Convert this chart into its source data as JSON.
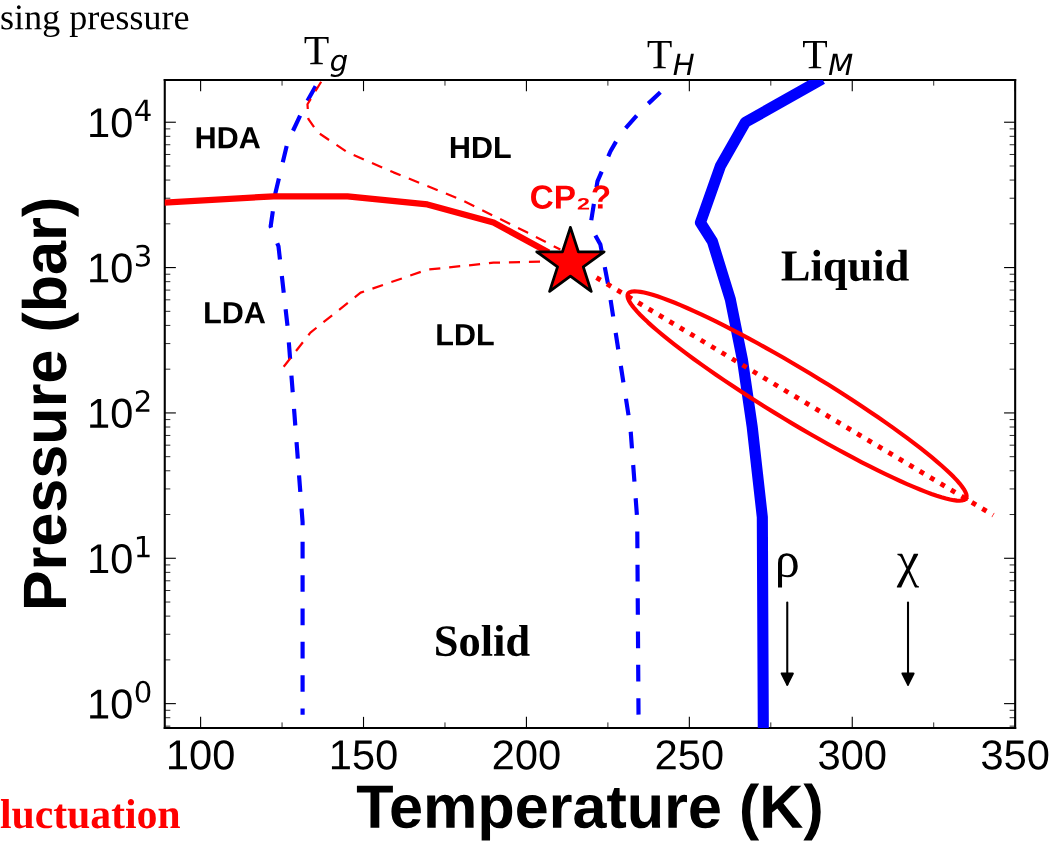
{
  "chart_data": {
    "type": "line",
    "xlabel": "Temperature (K)",
    "ylabel": "Pressure (bar)",
    "log": "y",
    "grid": false,
    "xlim": [
      89,
      350
    ],
    "xticks": [
      100,
      150,
      200,
      250,
      300,
      350
    ],
    "ylim": [
      0.68,
      19500
    ],
    "yticks": [
      {
        "value": 1,
        "label": "10$^{0}$"
      },
      {
        "value": 10,
        "label": "10$^{1}$"
      },
      {
        "value": 100,
        "label": "10$^{2}$"
      },
      {
        "value": 1000,
        "label": "10$^{3}$"
      },
      {
        "value": 10000,
        "label": "10$^{4}$"
      }
    ],
    "series": [
      {
        "name": "T$_{g}$",
        "color": "#0000ff",
        "line_style": "dashed",
        "x": [
          135.3,
          132.2,
          126.7,
          123.0,
          121.5,
          123.9,
          126.7,
          128.8,
          131.3,
          131.3
        ],
        "values": [
          17700,
          13300,
          7280,
          3290,
          1920,
          1400,
          392,
          98,
          17.7,
          0.84
        ]
      },
      {
        "name": "T$_{H}$",
        "color": "#0000ff",
        "line_style": "dashed",
        "x": [
          241.1,
          235.6,
          228.8,
          225.8,
          221.8,
          219.6,
          222.7,
          225.2,
          228.2,
          231.9,
          234.0,
          234.4
        ],
        "values": [
          16100,
          12300,
          8270,
          6310,
          3920,
          1920,
          1440,
          740,
          272,
          80,
          18.6,
          0.84
        ]
      },
      {
        "name": "T$_{M}$",
        "color": "#0000ff",
        "line_style": "solid",
        "x": [
          289.3,
          267.2,
          259.5,
          253.4,
          257.1,
          262.6,
          266.3,
          269.3,
          272.4,
          272.7
        ],
        "values": [
          19000,
          10000,
          4970,
          2040,
          1510,
          601,
          232,
          80,
          19.2,
          0.68
        ]
      },
      {
        "color": "#ff0000",
        "line_style": "solid",
        "x": [
          89,
          122.4,
          145.1,
          169.6,
          189.9,
          206
        ],
        "values": [
          2800,
          3090,
          3090,
          2720,
          2040,
          1300
        ]
      },
      {
        "color": "#ff0000",
        "line_style": "dashed",
        "x": [
          137,
          132.8,
          133.1,
          135.9,
          145.1,
          159.2,
          179.8,
          200.3,
          210.4
        ],
        "values": [
          19000,
          13300,
          10500,
          8530,
          6210,
          4520,
          2940,
          1740,
          1330
        ]
      },
      {
        "color": "#ff0000",
        "line_style": "dashed",
        "x": [
          125.5,
          133.7,
          149.1,
          169.6,
          189.9,
          205
        ],
        "values": [
          208,
          357,
          672,
          968,
          1080,
          1100
        ]
      },
      {
        "color": "#ff0000",
        "line_style": "dotted",
        "x": [
          221.5,
          343.3
        ],
        "values": [
          853,
          19.8
        ]
      },
      {
        "type": "scatter",
        "marker": "star",
        "color": "#ff0000",
        "x": [
          213.5
        ],
        "values": [
          1080
        ]
      }
    ],
    "annotations": [
      "sing pressure",
      "luctuation",
      "HDA",
      "HDL",
      "LDA",
      "LDL",
      "Liquid",
      "Solid",
      "ρ",
      "χ",
      {
        "text": "CP₂?",
        "x": 213.5,
        "y": 1080
      }
    ]
  }
}
